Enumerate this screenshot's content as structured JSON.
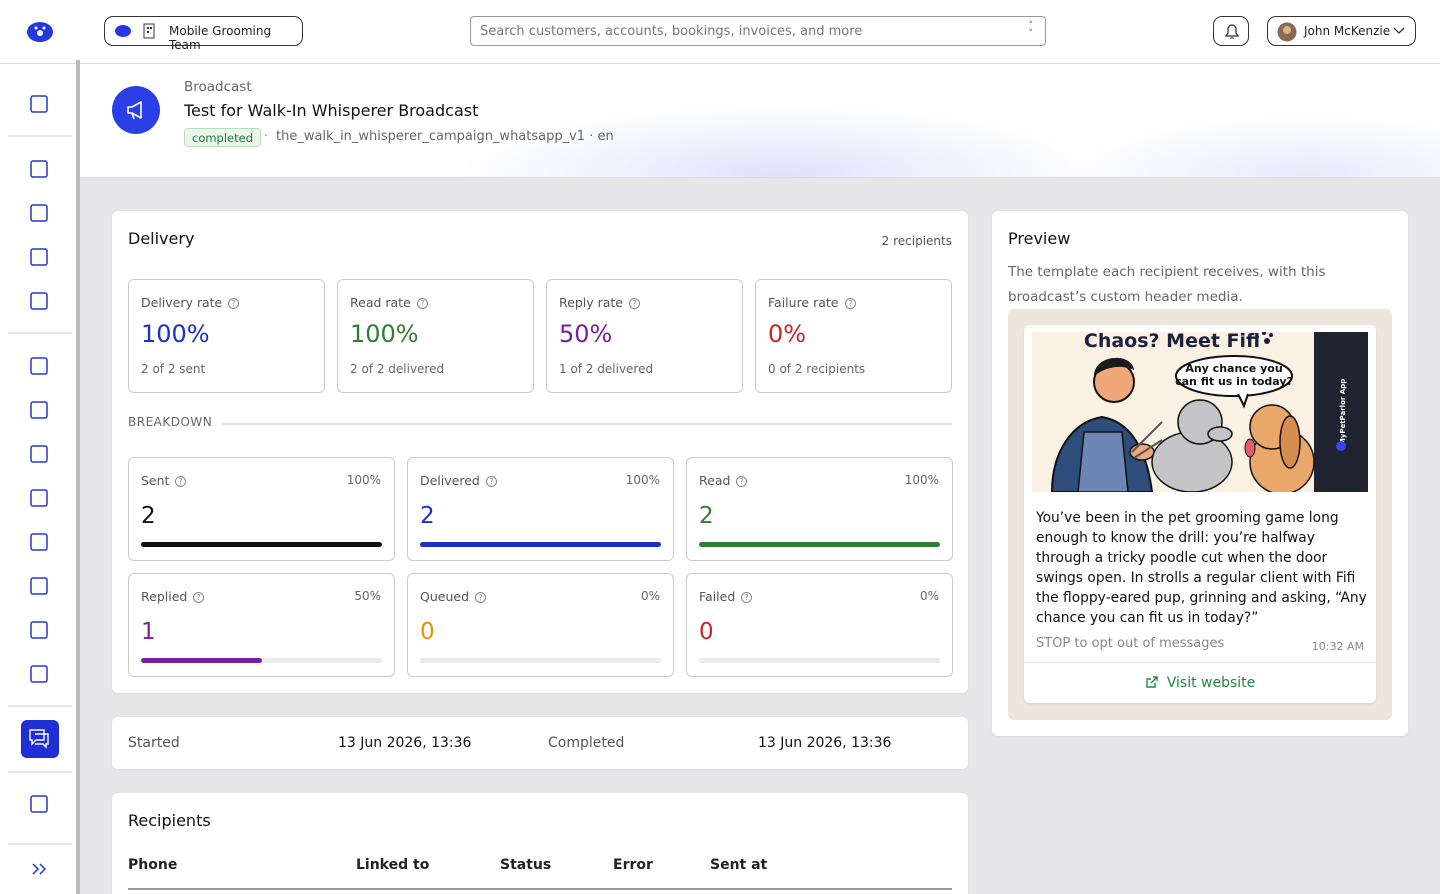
{
  "header": {
    "team": "Mobile Grooming Team",
    "search_placeholder": "Search customers, accounts, bookings, invoices, and more",
    "user": "John McKenzie"
  },
  "broadcast": {
    "kicker": "Broadcast",
    "title": "Test for Walk-In Whisperer Broadcast",
    "status": "completed",
    "separator": "·",
    "template": "the_walk_in_whisperer_campaign_whatsapp_v1 · en"
  },
  "delivery": {
    "title": "Delivery",
    "recipients": "2 recipients",
    "stats": [
      {
        "label": "Delivery rate",
        "value": "100%",
        "sub": "2 of 2 sent",
        "color": "#1a2fd0"
      },
      {
        "label": "Read rate",
        "value": "100%",
        "sub": "2 of 2 delivered",
        "color": "#2e7d32"
      },
      {
        "label": "Reply rate",
        "value": "50%",
        "sub": "1 of 2 delivered",
        "color": "#7b1fa2"
      },
      {
        "label": "Failure rate",
        "value": "0%",
        "sub": "0 of 2 recipients",
        "color": "#c62828"
      }
    ],
    "breakdown_label": "BREAKDOWN",
    "breakdown": [
      {
        "label": "Sent",
        "percent": 100,
        "percent_label": "100%",
        "count": 2,
        "color": "#111111"
      },
      {
        "label": "Delivered",
        "percent": 100,
        "percent_label": "100%",
        "count": 2,
        "color": "#1a2fd0"
      },
      {
        "label": "Read",
        "percent": 100,
        "percent_label": "100%",
        "count": 2,
        "color": "#2e7d32"
      },
      {
        "label": "Replied",
        "percent": 50,
        "percent_label": "50%",
        "count": 1,
        "color": "#7b1fa2"
      },
      {
        "label": "Queued",
        "percent": 0,
        "percent_label": "0%",
        "count": 0,
        "color": "#e69500"
      },
      {
        "label": "Failed",
        "percent": 0,
        "percent_label": "0%",
        "count": 0,
        "color": "#c62828"
      }
    ]
  },
  "timing": {
    "started_label": "Started",
    "started": "13 Jun 2026, 13:36",
    "completed_label": "Completed",
    "completed": "13 Jun 2026, 13:36"
  },
  "recipients": {
    "title": "Recipients",
    "columns": [
      "Phone",
      "Linked to",
      "Status",
      "Error",
      "Sent at"
    ]
  },
  "preview": {
    "title": "Preview",
    "description": "The template each recipient receives, with this broadcast’s custom header media.",
    "image_title": "Chaos? Meet Fifi",
    "image_bubble": [
      "Any chance you",
      "can fit us in today?"
    ],
    "image_brand": "MyPetParlor App",
    "body": "You’ve been in the pet grooming game long enough to know the drill: you’re halfway through a tricky poodle cut when the door swings open. In strolls a regular client with Fifi the floppy-eared pup, grinning and asking, “Any chance you can fit us in today?”",
    "footer": "STOP to opt out of messages",
    "time": "10:32 AM",
    "button": "Visit website"
  }
}
